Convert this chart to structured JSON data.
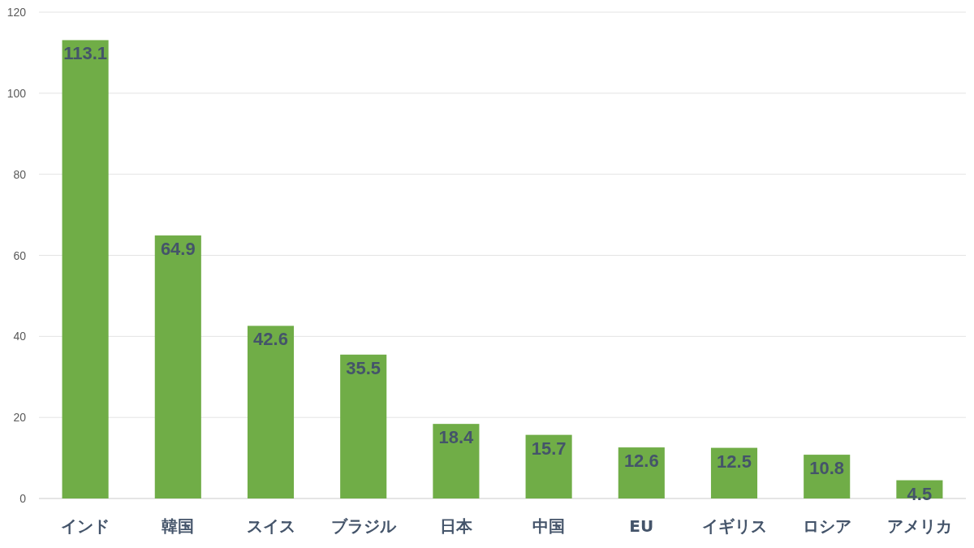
{
  "chart_data": {
    "type": "bar",
    "categories": [
      "インド",
      "韓国",
      "スイス",
      "ブラジル",
      "日本",
      "中国",
      "EU",
      "イギリス",
      "ロシア",
      "アメリカ"
    ],
    "values": [
      113.1,
      64.9,
      42.6,
      35.5,
      18.4,
      15.7,
      12.6,
      12.5,
      10.8,
      4.5
    ],
    "color": "#70ad47",
    "ylim": [
      0,
      120
    ],
    "yticks": [
      0,
      20,
      40,
      60,
      80,
      100,
      120
    ],
    "grid": "y",
    "data_labels": true
  }
}
